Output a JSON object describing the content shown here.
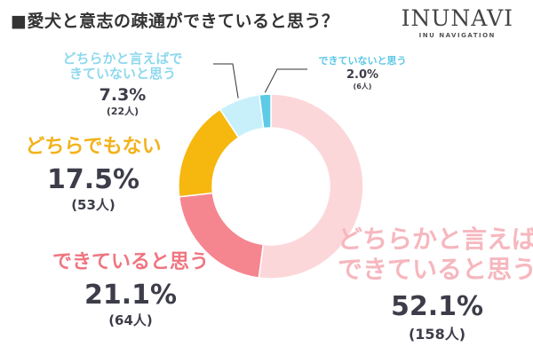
{
  "title": "■愛犬と意志の疎通ができていると思う？",
  "brand": {
    "name": "INUNAVI",
    "sub": "INU NAVIGATION"
  },
  "chart_data": {
    "type": "pie",
    "title": "■愛犬と意志の疎通ができていると思う？",
    "slices": [
      {
        "label": "どちらかと言えば\nできていると思う",
        "value": 52.1,
        "percent": "52.1%",
        "count": "(158人)",
        "color": "#fcd7da"
      },
      {
        "label": "できていると思う",
        "value": 21.1,
        "percent": "21.1%",
        "count": "(64人)",
        "color": "#f5868f"
      },
      {
        "label": "どちらでもない",
        "value": 17.5,
        "percent": "17.5%",
        "count": "(53人)",
        "color": "#f6b70f"
      },
      {
        "label": "どちらかと言えばで\nきていないと思う",
        "value": 7.3,
        "percent": "7.3%",
        "count": "(22人)",
        "color": "#c8f0fa"
      },
      {
        "label": "できていないと思う",
        "value": 2.0,
        "percent": "2.0%",
        "count": "(6人)",
        "color": "#5ccbe6"
      }
    ]
  }
}
